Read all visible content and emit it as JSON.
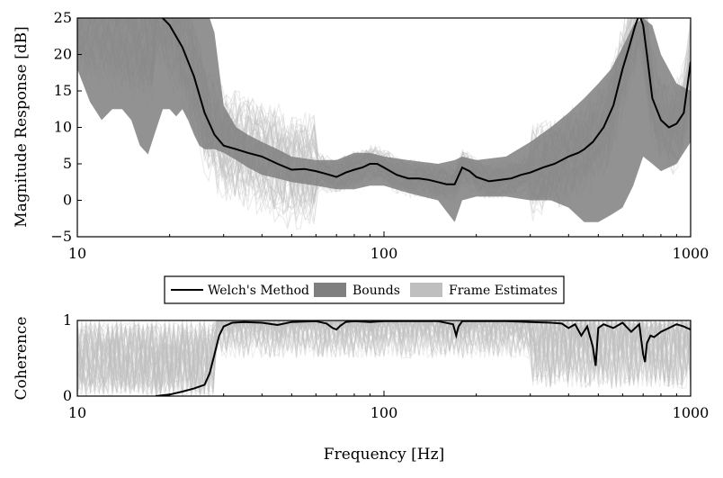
{
  "chart_data": [
    {
      "type": "line",
      "ylabel": "Magnitude Response [dB]",
      "xlabel": "",
      "xscale": "log",
      "xlim": [
        10,
        1000
      ],
      "ylim": [
        -5,
        25
      ],
      "xticks": [
        10,
        100,
        1000
      ],
      "xtick_labels": [
        "10",
        "100",
        "1000"
      ],
      "yticks": [
        -5,
        0,
        5,
        10,
        15,
        20,
        25
      ],
      "ytick_labels": [
        "−5",
        "0",
        "5",
        "10",
        "15",
        "20",
        "25"
      ],
      "grid": false,
      "series": [
        {
          "name": "Welch's Method",
          "color": "#000000",
          "x": [
            18,
            20,
            22,
            24,
            26,
            28,
            30,
            33,
            36,
            40,
            45,
            50,
            55,
            60,
            65,
            70,
            75,
            80,
            85,
            90,
            95,
            100,
            110,
            120,
            130,
            140,
            150,
            160,
            170,
            180,
            190,
            200,
            220,
            240,
            260,
            280,
            300,
            330,
            360,
            400,
            430,
            450,
            480,
            520,
            560,
            600,
            630,
            660,
            680,
            700,
            720,
            750,
            800,
            850,
            900,
            950,
            1000
          ],
          "y": [
            26,
            24,
            21,
            17,
            12,
            9,
            7.5,
            7,
            6.5,
            6,
            5,
            4.2,
            4.3,
            4,
            3.6,
            3.2,
            3.8,
            4.2,
            4.5,
            5,
            5,
            4.5,
            3.5,
            3,
            3,
            2.8,
            2.5,
            2.2,
            2.2,
            4.5,
            4,
            3.2,
            2.6,
            2.8,
            3,
            3.5,
            3.8,
            4.5,
            5,
            6,
            6.5,
            7,
            8,
            10,
            13,
            18,
            21,
            24,
            25.5,
            24,
            20,
            14,
            11,
            10,
            10.5,
            12,
            19
          ]
        },
        {
          "name": "Bounds",
          "color": "#7f7f7f",
          "x": [
            10,
            11,
            12,
            13,
            14,
            15,
            16,
            17,
            18,
            19,
            20,
            21,
            22,
            23,
            24,
            25,
            26,
            27,
            28,
            30,
            33,
            36,
            40,
            45,
            50,
            60,
            70,
            80,
            90,
            100,
            120,
            150,
            170,
            180,
            200,
            250,
            300,
            350,
            400,
            450,
            500,
            550,
            600,
            650,
            700,
            750,
            800,
            900,
            1000
          ],
          "upper": [
            25,
            25,
            25,
            25,
            25,
            25,
            25,
            25,
            25,
            25,
            25,
            25,
            25,
            25,
            25,
            25,
            25,
            25,
            23,
            13,
            10,
            9,
            8,
            7,
            6,
            5.5,
            5.5,
            6.5,
            6.5,
            6,
            5.5,
            5,
            5.5,
            6,
            5.5,
            6,
            8,
            10,
            12,
            14,
            16,
            18,
            21,
            24,
            25,
            24,
            20,
            16,
            15
          ],
          "lower": [
            18,
            13.5,
            11,
            12.5,
            12.5,
            11,
            7.5,
            6.3,
            9.5,
            12.5,
            12.5,
            11.5,
            12.5,
            11,
            9,
            7.5,
            7,
            7,
            7,
            6.5,
            5.5,
            4.5,
            3.5,
            3,
            2.5,
            2,
            1.5,
            1.5,
            2,
            2,
            1,
            0,
            -3,
            0,
            0.5,
            0.5,
            0,
            0,
            -1,
            -3,
            -3,
            -2,
            -1,
            2,
            6,
            5,
            4,
            5,
            8
          ]
        },
        {
          "name": "Frame Estimates",
          "color": "#bfbfbf"
        }
      ]
    },
    {
      "type": "line",
      "ylabel": "Coherence",
      "xlabel": "Frequency [Hz]",
      "xscale": "log",
      "xlim": [
        10,
        1000
      ],
      "ylim": [
        0,
        1
      ],
      "xticks": [
        10,
        100,
        1000
      ],
      "xtick_labels": [
        "10",
        "100",
        "1000"
      ],
      "yticks": [
        0,
        1
      ],
      "ytick_labels": [
        "0",
        "1"
      ],
      "grid": false,
      "series": [
        {
          "name": "Welch's Method",
          "color": "#000000",
          "x": [
            18,
            20,
            22,
            24,
            26,
            27,
            28,
            29,
            30,
            32,
            35,
            40,
            45,
            50,
            60,
            65,
            68,
            70,
            72,
            75,
            80,
            90,
            100,
            120,
            150,
            168,
            172,
            175,
            180,
            200,
            250,
            300,
            350,
            380,
            400,
            420,
            440,
            460,
            480,
            490,
            500,
            520,
            560,
            600,
            640,
            680,
            700,
            710,
            720,
            740,
            760,
            800,
            850,
            900,
            950,
            1000
          ],
          "y": [
            0,
            0.02,
            0.06,
            0.1,
            0.15,
            0.3,
            0.55,
            0.8,
            0.92,
            0.97,
            0.98,
            0.97,
            0.94,
            0.98,
            0.99,
            0.96,
            0.9,
            0.88,
            0.93,
            0.98,
            0.99,
            0.98,
            0.99,
            0.99,
            0.99,
            0.95,
            0.8,
            0.92,
            0.99,
            0.99,
            0.99,
            0.98,
            0.97,
            0.96,
            0.9,
            0.95,
            0.8,
            0.92,
            0.65,
            0.4,
            0.9,
            0.95,
            0.9,
            0.97,
            0.85,
            0.95,
            0.55,
            0.45,
            0.7,
            0.8,
            0.78,
            0.85,
            0.9,
            0.95,
            0.92,
            0.88
          ]
        },
        {
          "name": "Bounds",
          "color": "#7f7f7f"
        },
        {
          "name": "Frame Estimates",
          "color": "#bfbfbf"
        }
      ]
    }
  ],
  "legend": {
    "placement": "between-panels",
    "items": [
      "Welch's Method",
      "Bounds",
      "Frame Estimates"
    ]
  }
}
